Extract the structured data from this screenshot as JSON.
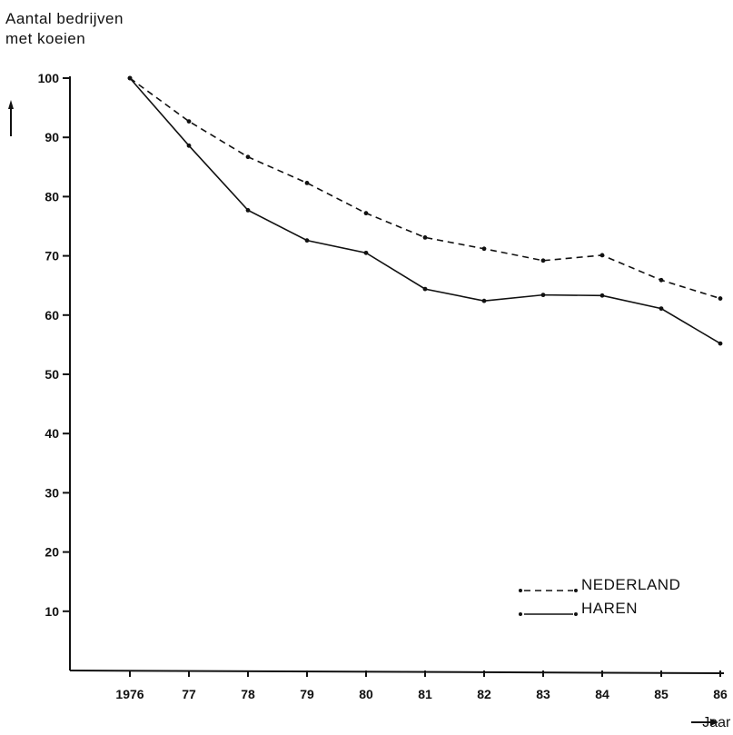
{
  "chart_data": {
    "type": "line",
    "title": "",
    "ylabel_lines": [
      "Aantal bedrijven",
      "met koeien"
    ],
    "xlabel": "Jaar",
    "categories": [
      "1976",
      "77",
      "78",
      "79",
      "80",
      "81",
      "82",
      "83",
      "84",
      "85",
      "86"
    ],
    "yticks": [
      "10",
      "20",
      "30",
      "40",
      "50",
      "60",
      "70",
      "80",
      "90",
      "100"
    ],
    "ylim": [
      0,
      100
    ],
    "grid": false,
    "legend_position": "bottom-right",
    "series": [
      {
        "name": "NEDERLAND",
        "style": "dashed",
        "values": [
          100,
          92.7,
          86.7,
          82.3,
          77.2,
          73.1,
          71.2,
          69.2,
          70.1,
          65.9,
          62.8
        ]
      },
      {
        "name": "HAREN",
        "style": "solid",
        "values": [
          100,
          88.6,
          77.7,
          72.6,
          70.5,
          64.4,
          62.4,
          63.4,
          63.3,
          61.1,
          55.2
        ]
      }
    ],
    "color": "#111111"
  }
}
